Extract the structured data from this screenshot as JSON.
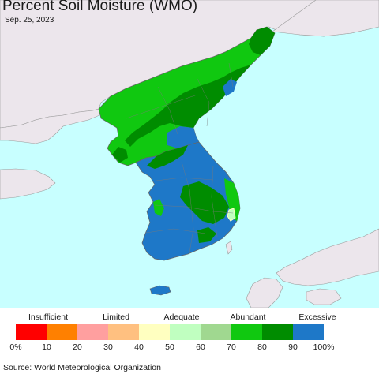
{
  "title": "Percent Soil Moisture (WMO)",
  "date": "Sep. 25, 2023",
  "legend": {
    "categories": [
      "Insufficient",
      "Limited",
      "Adequate",
      "Abundant",
      "Excessive"
    ],
    "ticks": [
      "0%",
      "10",
      "20",
      "30",
      "40",
      "50",
      "60",
      "70",
      "80",
      "90",
      "100%"
    ],
    "colors": [
      "#ff0000",
      "#ff8000",
      "#ff9f9f",
      "#ffc080",
      "#ffffc0",
      "#c0ffc0",
      "#a0d890",
      "#10c810",
      "#008c00",
      "#1e78c8"
    ]
  },
  "source": "Source: World Meteorological Organization",
  "map_colors": {
    "ocean": "#c8ffff",
    "land_outside": "#ece6ec",
    "border": "#888888"
  }
}
